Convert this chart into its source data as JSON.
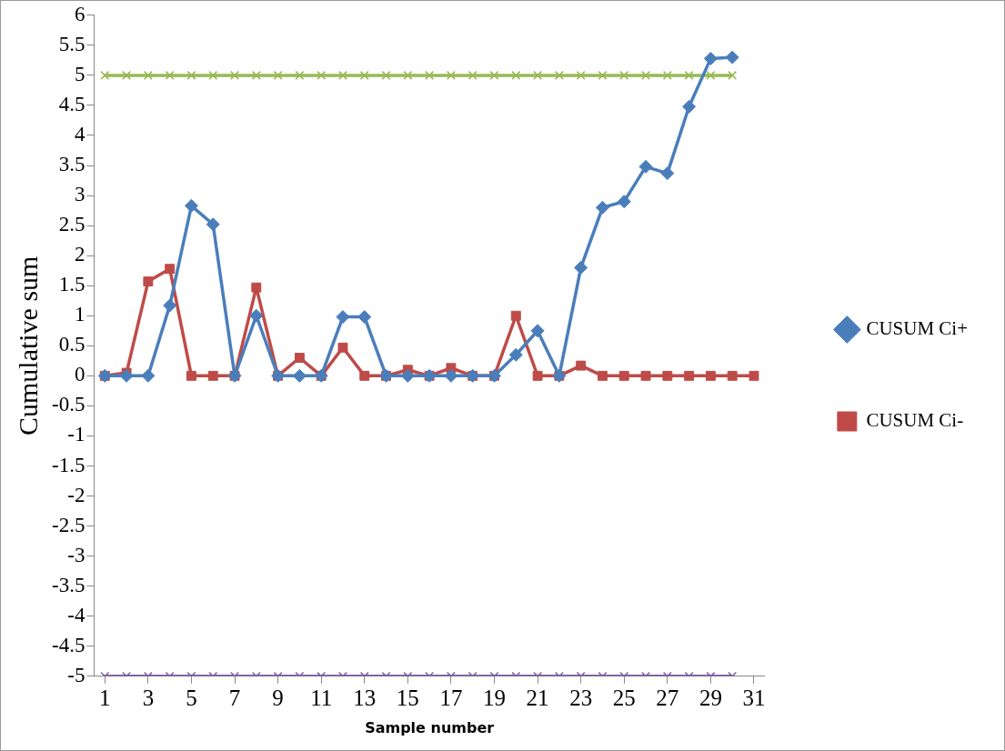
{
  "chart_data": {
    "type": "line",
    "xlabel": "Sample number",
    "ylabel": "Cumulative sum",
    "x": [
      1,
      2,
      3,
      4,
      5,
      6,
      7,
      8,
      9,
      10,
      11,
      12,
      13,
      14,
      15,
      16,
      17,
      18,
      19,
      20,
      21,
      22,
      23,
      24,
      25,
      26,
      27,
      28,
      29,
      30,
      31
    ],
    "xlim": [
      0.5,
      31.5
    ],
    "xticks": [
      1,
      3,
      5,
      7,
      9,
      11,
      13,
      15,
      17,
      19,
      21,
      23,
      25,
      27,
      29,
      31
    ],
    "ylim": [
      -5,
      6
    ],
    "yticks": [
      -5,
      -4.5,
      -4,
      -3.5,
      -3,
      -2.5,
      -2,
      -1.5,
      -1,
      -0.5,
      0,
      0.5,
      1,
      1.5,
      2,
      2.5,
      3,
      3.5,
      4,
      4.5,
      5,
      5.5,
      6
    ],
    "grid": false,
    "legend": "right",
    "line_style": "solid",
    "series": [
      {
        "name": "CUSUM Ci+",
        "color": "#4a7ebb",
        "marker": "diamond",
        "values": [
          0,
          0,
          0,
          1.17,
          2.83,
          2.52,
          0,
          1.0,
          0,
          0,
          0,
          0.98,
          0.98,
          0,
          0,
          0,
          0,
          0,
          0,
          0.35,
          0.75,
          0,
          1.8,
          2.8,
          2.9,
          3.48,
          3.37,
          4.48,
          5.28,
          5.3,
          null
        ]
      },
      {
        "name": "CUSUM Ci-",
        "color": "#be4b48",
        "marker": "square",
        "values": [
          0,
          0.05,
          1.57,
          1.78,
          0,
          0,
          0,
          1.47,
          0,
          0.3,
          0,
          0.47,
          0,
          0,
          0.1,
          0,
          0.13,
          0,
          0,
          1.0,
          0,
          0,
          0.17,
          0,
          0,
          0,
          0,
          0,
          0,
          0,
          0
        ]
      },
      {
        "color": "#98b954",
        "marker": "cross",
        "values": [
          5,
          5,
          5,
          5,
          5,
          5,
          5,
          5,
          5,
          5,
          5,
          5,
          5,
          5,
          5,
          5,
          5,
          5,
          5,
          5,
          5,
          5,
          5,
          5,
          5,
          5,
          5,
          5,
          5,
          5,
          null
        ]
      },
      {
        "color": "#7d60a0",
        "marker": "cross",
        "values": [
          -5,
          -5,
          -5,
          -5,
          -5,
          -5,
          -5,
          -5,
          -5,
          -5,
          -5,
          -5,
          -5,
          -5,
          -5,
          -5,
          -5,
          -5,
          -5,
          -5,
          -5,
          -5,
          -5,
          -5,
          -5,
          -5,
          -5,
          -5,
          -5,
          -5,
          null
        ]
      }
    ]
  }
}
